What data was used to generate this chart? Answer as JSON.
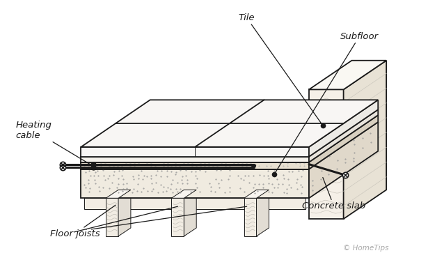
{
  "bg_color": "#ffffff",
  "line_color": "#1a1a1a",
  "labels": {
    "tile": "Tile",
    "subfloor": "Subfloor",
    "heating_cable": "Heating\ncable",
    "concrete_slab": "Concrete slab",
    "floor_joists": "Floor joists",
    "copyright": "© HomeTips"
  }
}
